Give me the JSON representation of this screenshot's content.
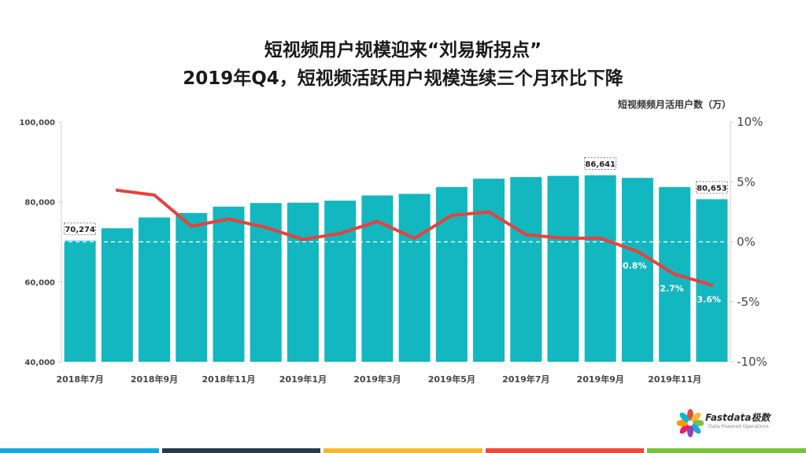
{
  "title_line1": "短视频用户规模迎来“刘易斯拐点”",
  "title_line2": "2019年Q4，短视频活跃用户规模连续三个月环比下降",
  "series_caption": "短视频频月活用户数（万）",
  "chart_data": {
    "type": "bar",
    "categories": [
      "2018年7月",
      "2018年8月",
      "2018年9月",
      "2018年10月",
      "2018年11月",
      "2018年12月",
      "2019年1月",
      "2019年2月",
      "2019年3月",
      "2019年4月",
      "2019年5月",
      "2019年6月",
      "2019年7月",
      "2019年8月",
      "2019年9月",
      "2019年10月",
      "2019年11月",
      "2019年12月"
    ],
    "x_tick_labels": [
      "2018年7月",
      "",
      "2018年9月",
      "",
      "2018年11月",
      "",
      "2019年1月",
      "",
      "2019年3月",
      "",
      "2019年5月",
      "",
      "2019年7月",
      "",
      "2019年9月",
      "",
      "2019年11月",
      ""
    ],
    "bar_values": [
      70274,
      73400,
      76100,
      77200,
      78800,
      79700,
      79800,
      80300,
      81600,
      82000,
      83700,
      85800,
      86200,
      86500,
      86641,
      86000,
      83700,
      80653
    ],
    "bar_labels": [
      "70,274",
      "",
      "",
      "",
      "",
      "",
      "",
      "",
      "",
      "",
      "",
      "",
      "",
      "",
      "86,641",
      "",
      "",
      "80,653"
    ],
    "line_values": [
      null,
      4.3,
      3.9,
      1.3,
      1.9,
      1.2,
      0.2,
      0.7,
      1.7,
      0.3,
      2.2,
      2.5,
      0.6,
      0.3,
      0.3,
      -0.8,
      -2.7,
      -3.6
    ],
    "line_labels": [
      "",
      "",
      "",
      "",
      "",
      "",
      "",
      "",
      "",
      "",
      "",
      "",
      "",
      "",
      "",
      "-0.8%",
      "-2.7%",
      "-3.6%"
    ],
    "y_left_range": [
      40000,
      100000
    ],
    "y_left_ticks": [
      "40,000",
      "60,000",
      "80,000",
      "100,000"
    ],
    "y_right_range": [
      -10,
      10
    ],
    "y_right_ticks": [
      "-10%",
      "-5%",
      "0%",
      "5%",
      "10%"
    ],
    "bar_color": "#12B7BF",
    "line_color": "#E8413C",
    "grid": false
  },
  "logo": {
    "name": "Fastdata极数",
    "tagline": "Data Powered Operations"
  },
  "bottom_bar_colors": [
    "#1CA7DD",
    "#2B3A4A",
    "#F2B83B",
    "#E84B3C",
    "#7BC043"
  ]
}
